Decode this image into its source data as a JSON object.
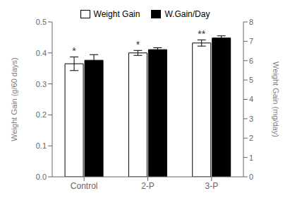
{
  "chart_data": {
    "type": "bar",
    "categories": [
      "Control",
      "2-P",
      "3-P"
    ],
    "series": [
      {
        "name": "Weight Gain",
        "color": "white",
        "values": [
          0.365,
          0.4,
          0.432
        ],
        "errors": [
          0.022,
          0.008,
          0.01
        ]
      },
      {
        "name": "W.Gain/Day",
        "color": "black",
        "values": [
          6.02,
          6.57,
          7.17
        ],
        "errors": [
          0.29,
          0.1,
          0.11
        ],
        "axis": "y2"
      }
    ],
    "ylabel": "Weight Gain (g/60 days)",
    "y2label": "Weight Gain (mg/day)",
    "ylim": [
      0,
      0.5
    ],
    "yticks": [
      {
        "value": 0,
        "label": "0.0"
      },
      0.1,
      0.2,
      0.3,
      0.4,
      0.5
    ],
    "y2lim": [
      0,
      8
    ],
    "y2ticks": [
      0,
      1,
      2,
      3,
      4,
      5,
      6,
      7,
      8
    ],
    "annotations": [
      {
        "text": "*",
        "series": "Weight Gain",
        "category": "Control"
      },
      {
        "text": "*",
        "series": "Weight Gain",
        "category": "2-P"
      },
      {
        "text": "**",
        "series": "Weight Gain",
        "category": "3-P"
      }
    ],
    "legend": "top",
    "grid": false
  }
}
